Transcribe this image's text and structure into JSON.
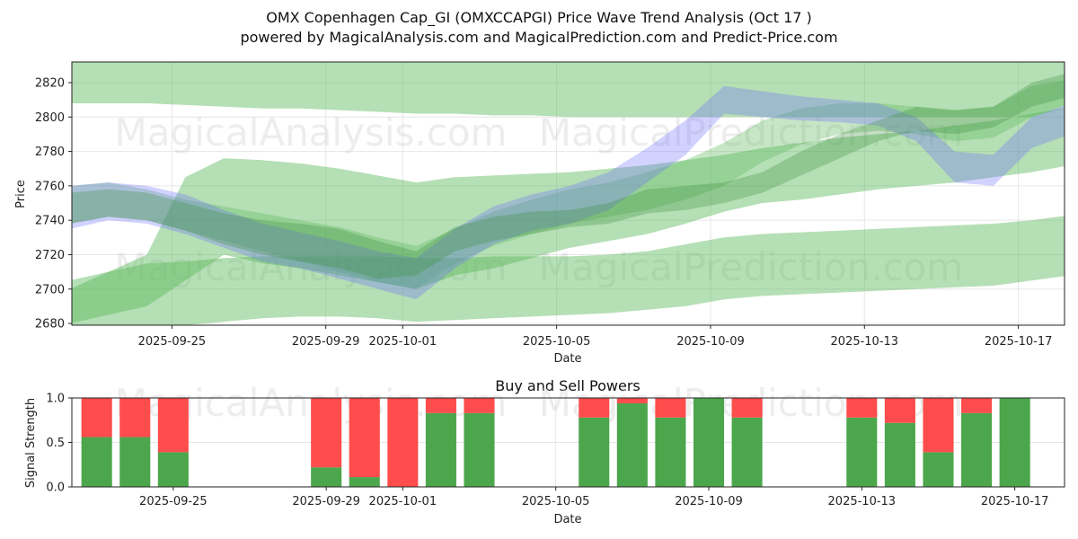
{
  "title": "OMX Copenhagen Cap_GI (OMXCCAPGI) Price Wave Trend Analysis (Oct 17 )",
  "subtitle": "powered by MagicalAnalysis.com and MagicalPrediction.com and Predict-Price.com",
  "watermarks": [
    "MagicalAnalysis.com",
    "MagicalPrediction.com"
  ],
  "chart_data": [
    {
      "type": "area",
      "title": "",
      "xlabel": "Date",
      "ylabel": "Price",
      "ylim": [
        2679,
        2832
      ],
      "x_range": [
        "2025-09-22",
        "2025-10-18"
      ],
      "x_ticks": [
        "2025-09-25",
        "2025-09-29",
        "2025-10-01",
        "2025-10-05",
        "2025-10-09",
        "2025-10-13",
        "2025-10-17"
      ],
      "y_ticks": [
        2680,
        2700,
        2720,
        2740,
        2760,
        2780,
        2800,
        2820
      ],
      "grid": true,
      "colors": {
        "green": "#5cb85c",
        "blue": "#6b6bff",
        "darkgreen": "#3a8f3a"
      },
      "x_dates": [
        "2025-09-22",
        "2025-09-23",
        "2025-09-24",
        "2025-09-25",
        "2025-09-26",
        "2025-09-27",
        "2025-09-28",
        "2025-09-29",
        "2025-09-30",
        "2025-10-01",
        "2025-10-02",
        "2025-10-03",
        "2025-10-04",
        "2025-10-05",
        "2025-10-06",
        "2025-10-07",
        "2025-10-08",
        "2025-10-09",
        "2025-10-10",
        "2025-10-11",
        "2025-10-12",
        "2025-10-13",
        "2025-10-14",
        "2025-10-15",
        "2025-10-16",
        "2025-10-17",
        "2025-10-18"
      ],
      "bands": [
        {
          "name": "upper-long-band",
          "color": "green",
          "opacity": 0.45,
          "upper": [
            2832,
            2832,
            2832,
            2832,
            2832,
            2832,
            2832,
            2832,
            2832,
            2832,
            2832,
            2832,
            2832,
            2832,
            2832,
            2832,
            2832,
            2832,
            2832,
            2832,
            2832,
            2832,
            2832,
            2832,
            2832,
            2832,
            2832
          ],
          "lower": [
            2808,
            2808,
            2808,
            2807,
            2806,
            2805,
            2805,
            2804,
            2803,
            2802,
            2802,
            2801,
            2801,
            2800,
            2800,
            2800,
            2800,
            2800,
            2800,
            2800,
            2800,
            2800,
            2800,
            2800,
            2800,
            2800,
            2808
          ]
        },
        {
          "name": "lower-long-band",
          "color": "green",
          "opacity": 0.45,
          "upper": [
            2705,
            2710,
            2715,
            2716,
            2718,
            2719,
            2719,
            2719,
            2719,
            2718,
            2718,
            2719,
            2719,
            2719,
            2720,
            2722,
            2726,
            2730,
            2732,
            2733,
            2734,
            2735,
            2736,
            2737,
            2738,
            2740,
            2743
          ],
          "lower": [
            2679,
            2679,
            2679,
            2679,
            2681,
            2683,
            2684,
            2684,
            2683,
            2681,
            2682,
            2683,
            2684,
            2685,
            2686,
            2688,
            2690,
            2694,
            2696,
            2697,
            2698,
            2699,
            2700,
            2701,
            2702,
            2705,
            2708
          ]
        },
        {
          "name": "mid-trend-band",
          "color": "green",
          "opacity": 0.45,
          "upper": [
            2700,
            2710,
            2720,
            2765,
            2776,
            2775,
            2773,
            2770,
            2766,
            2762,
            2765,
            2766,
            2767,
            2768,
            2770,
            2772,
            2775,
            2778,
            2782,
            2785,
            2788,
            2790,
            2792,
            2795,
            2798,
            2802,
            2806
          ],
          "lower": [
            2680,
            2685,
            2690,
            2705,
            2720,
            2715,
            2712,
            2708,
            2704,
            2700,
            2708,
            2712,
            2718,
            2724,
            2728,
            2732,
            2738,
            2745,
            2750,
            2752,
            2755,
            2758,
            2760,
            2762,
            2765,
            2768,
            2772
          ]
        },
        {
          "name": "short-green-band",
          "color": "green",
          "opacity": 0.35,
          "upper": [
            2760,
            2762,
            2758,
            2752,
            2748,
            2744,
            2740,
            2736,
            2730,
            2725,
            2735,
            2745,
            2752,
            2758,
            2762,
            2768,
            2775,
            2785,
            2798,
            2805,
            2808,
            2808,
            2806,
            2804,
            2806,
            2818,
            2822
          ],
          "lower": [
            2738,
            2742,
            2740,
            2734,
            2728,
            2722,
            2716,
            2710,
            2704,
            2700,
            2715,
            2725,
            2732,
            2738,
            2742,
            2746,
            2752,
            2760,
            2774,
            2784,
            2790,
            2792,
            2790,
            2786,
            2788,
            2800,
            2806
          ]
        },
        {
          "name": "wave-blue-band",
          "color": "blue",
          "opacity": 0.3,
          "upper": [
            2760,
            2762,
            2760,
            2755,
            2746,
            2738,
            2733,
            2728,
            2722,
            2718,
            2735,
            2748,
            2755,
            2760,
            2768,
            2782,
            2798,
            2818,
            2815,
            2812,
            2810,
            2808,
            2800,
            2780,
            2778,
            2800,
            2808
          ],
          "lower": [
            2735,
            2740,
            2738,
            2732,
            2724,
            2716,
            2712,
            2706,
            2700,
            2694,
            2712,
            2726,
            2734,
            2738,
            2746,
            2762,
            2778,
            2802,
            2800,
            2798,
            2797,
            2795,
            2786,
            2762,
            2760,
            2782,
            2790
          ]
        },
        {
          "name": "wave-green-band",
          "color": "darkgreen",
          "opacity": 0.3,
          "upper": [
            2756,
            2758,
            2756,
            2750,
            2744,
            2740,
            2738,
            2735,
            2728,
            2722,
            2736,
            2742,
            2745,
            2746,
            2750,
            2758,
            2760,
            2762,
            2768,
            2780,
            2790,
            2798,
            2806,
            2804,
            2806,
            2820,
            2826
          ],
          "lower": [
            2738,
            2742,
            2740,
            2734,
            2726,
            2720,
            2716,
            2712,
            2706,
            2708,
            2722,
            2728,
            2732,
            2736,
            2738,
            2744,
            2746,
            2750,
            2756,
            2766,
            2776,
            2786,
            2792,
            2790,
            2794,
            2806,
            2812
          ]
        }
      ]
    },
    {
      "type": "bar",
      "title": "Buy and Sell Powers",
      "xlabel": "Date",
      "ylabel": "Signal Strength",
      "ylim": [
        0,
        1.0
      ],
      "y_ticks": [
        0.0,
        0.5,
        1.0
      ],
      "y_tick_labels": [
        "0.0",
        "0.5",
        "1.0"
      ],
      "x_ticks": [
        "2025-09-25",
        "2025-09-29",
        "2025-10-01",
        "2025-10-05",
        "2025-10-09",
        "2025-10-13",
        "2025-10-17"
      ],
      "colors": {
        "buy": "#4ca64c",
        "sell": "#ff4c4c"
      },
      "categories": [
        "2025-09-23",
        "2025-09-24",
        "2025-09-25",
        "2025-09-29",
        "2025-09-30",
        "2025-10-01",
        "2025-10-02",
        "2025-10-03",
        "2025-10-06",
        "2025-10-07",
        "2025-10-08",
        "2025-10-09",
        "2025-10-10",
        "2025-10-13",
        "2025-10-14",
        "2025-10-15",
        "2025-10-16",
        "2025-10-17"
      ],
      "series": [
        {
          "name": "Buy",
          "values": [
            0.56,
            0.56,
            0.39,
            0.22,
            0.11,
            0.0,
            0.83,
            0.83,
            0.78,
            0.94,
            0.78,
            1.0,
            0.78,
            0.78,
            0.72,
            0.39,
            0.83,
            1.0
          ]
        },
        {
          "name": "Sell",
          "values": [
            0.44,
            0.44,
            0.61,
            0.78,
            0.89,
            1.0,
            0.17,
            0.17,
            0.22,
            0.06,
            0.22,
            0.0,
            0.22,
            0.22,
            0.28,
            0.61,
            0.17,
            0.0
          ]
        }
      ]
    }
  ]
}
